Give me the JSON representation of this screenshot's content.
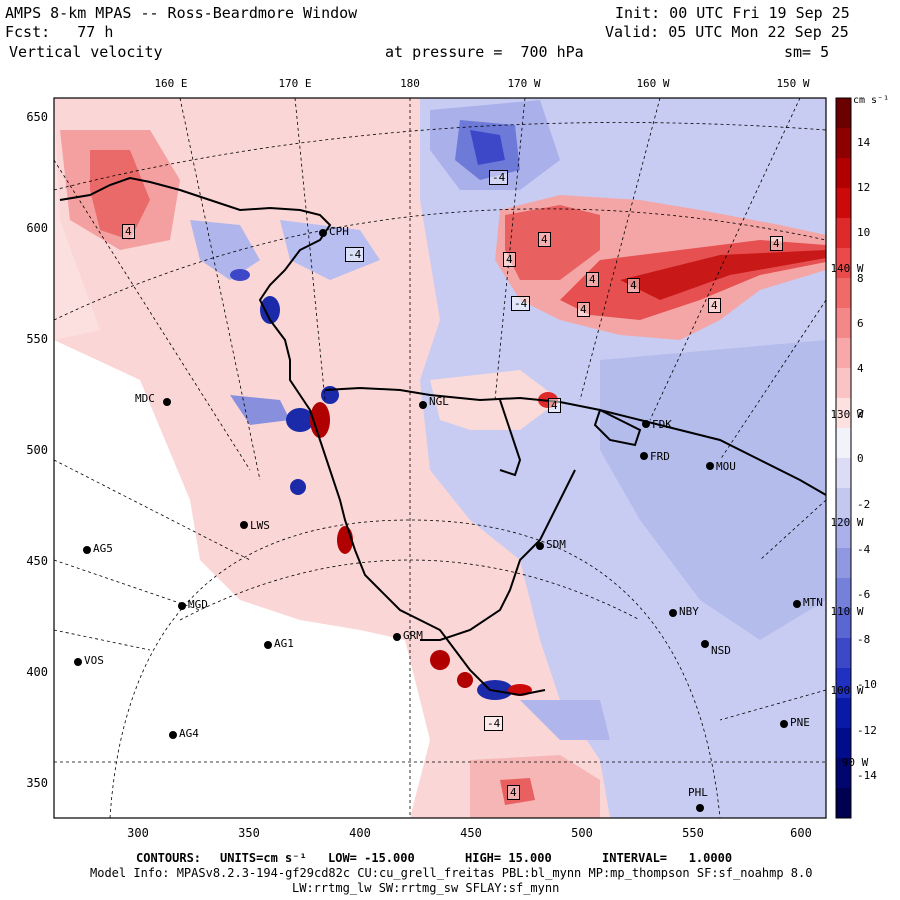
{
  "header": {
    "title": "AMPS 8-km MPAS -- Ross-Beardmore Window",
    "forecast": "Fcst:   77 h",
    "field": "Vertical velocity",
    "init": "Init: 00 UTC Fri 19 Sep 25",
    "valid": "Valid: 05 UTC Mon 22 Sep 25",
    "pressure": "at pressure =  700 hPa",
    "smoothing": "sm= 5"
  },
  "axes": {
    "y_ticks": [
      "650",
      "600",
      "550",
      "500",
      "450",
      "400",
      "350"
    ],
    "x_ticks": [
      "300",
      "350",
      "400",
      "450",
      "500",
      "550",
      "600"
    ],
    "lon_labels": [
      "160 E",
      "170 E",
      "180",
      "170 W",
      "160 W",
      "150 W"
    ],
    "right_lon_labels": [
      "140 W",
      "130 W",
      "120 W",
      "110 W",
      "100 W",
      "90 W"
    ]
  },
  "colorbar": {
    "units": "cm s⁻¹",
    "ticks": [
      "14",
      "12",
      "10",
      "8",
      "6",
      "4",
      "2",
      "0",
      "-2",
      "-4",
      "-6",
      "-8",
      "-10",
      "-12",
      "-14"
    ],
    "colors": [
      "#6a0000",
      "#8c0000",
      "#b00000",
      "#cc0a0a",
      "#de2a2a",
      "#ea4a4a",
      "#f06a6a",
      "#f48888",
      "#f8a8a8",
      "#fbc4c4",
      "#fde0e0",
      "#f2f2fa",
      "#dcdcf6",
      "#c4c8f0",
      "#aab0ea",
      "#9098e2",
      "#7480da",
      "#5a66d2",
      "#3c48c8",
      "#2030c0",
      "#0a1aa8",
      "#000c8c",
      "#00066e",
      "#000052"
    ]
  },
  "stations": [
    {
      "name": "CPH"
    },
    {
      "name": "MDC"
    },
    {
      "name": "NGL"
    },
    {
      "name": "FDK"
    },
    {
      "name": "FRD"
    },
    {
      "name": "MOU"
    },
    {
      "name": "LWS"
    },
    {
      "name": "AG5"
    },
    {
      "name": "SDM"
    },
    {
      "name": "MGD"
    },
    {
      "name": "NBY"
    },
    {
      "name": "MTN"
    },
    {
      "name": "AG1"
    },
    {
      "name": "GRM"
    },
    {
      "name": "NSD"
    },
    {
      "name": "VOS"
    },
    {
      "name": "PNE"
    },
    {
      "name": "AG4"
    },
    {
      "name": "PHL"
    }
  ],
  "contour_labels": [
    "-4",
    "4",
    "4",
    "-4",
    "4",
    "4",
    "4",
    "4",
    "4",
    "4",
    "4",
    "-4",
    "-4",
    "4"
  ],
  "footer": {
    "contours_label": "CONTOURS:",
    "units_label": "UNITS=cm s⁻¹",
    "low": "LOW= -15.000",
    "high": "HIGH= 15.000",
    "interval": "INTERVAL=   1.0000",
    "model_info": "Model Info: MPASv8.2.3-194-gf29cd82c CU:cu_grell_freitas PBL:bl_mynn MP:mp_thompson SF:sf_noahmp 8.0",
    "model_info2": "LW:rrtmg_lw SW:rrtmg_sw SFLAY:sf_mynn"
  },
  "colors": {
    "warm": "#f4a0a0",
    "cool": "#b8c0ec",
    "ice": "#ffffff"
  }
}
